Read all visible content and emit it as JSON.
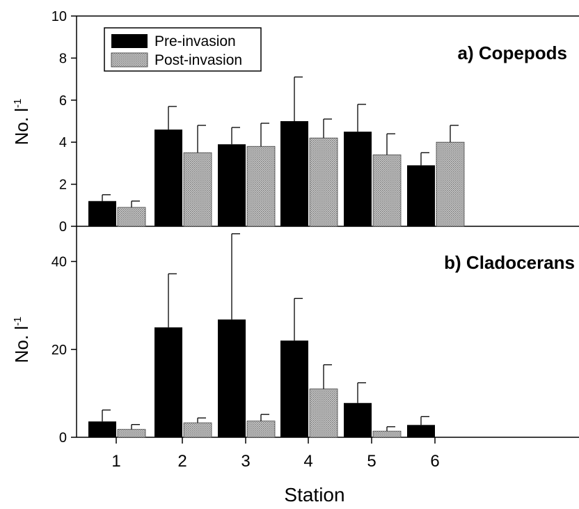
{
  "colors": {
    "pre": "#000000",
    "post": "#a6a6a6",
    "axis": "#000000"
  },
  "legend": {
    "pre": "Pre-invasion",
    "post": "Post-invasion"
  },
  "xaxis": {
    "label": "Station",
    "ticks": [
      "1",
      "2",
      "3",
      "4",
      "5",
      "6"
    ]
  },
  "chart_data": [
    {
      "type": "bar",
      "title": "a) Copepods",
      "ylabel": "No. l",
      "ylabel_sup": "-1",
      "ylim": [
        0,
        10
      ],
      "yticks": [
        0,
        2,
        4,
        6,
        8,
        10
      ],
      "categories": [
        "1",
        "2",
        "3",
        "4",
        "5",
        "6"
      ],
      "series": [
        {
          "name": "Pre-invasion",
          "values": [
            1.2,
            4.6,
            3.9,
            5.0,
            4.5,
            2.9
          ],
          "errors": [
            0.3,
            1.1,
            0.8,
            2.1,
            1.3,
            0.6
          ]
        },
        {
          "name": "Post-invasion",
          "values": [
            0.9,
            3.5,
            3.8,
            4.2,
            3.4,
            4.0
          ],
          "errors": [
            0.3,
            1.3,
            1.1,
            0.9,
            1.0,
            0.8
          ]
        }
      ],
      "legend_position": "top-left"
    },
    {
      "type": "bar",
      "title": "b) Cladocerans",
      "ylabel": "No. l",
      "ylabel_sup": "-1",
      "ylim": [
        0,
        48
      ],
      "yticks": [
        0,
        20,
        40
      ],
      "categories": [
        "1",
        "2",
        "3",
        "4",
        "5",
        "6"
      ],
      "series": [
        {
          "name": "Pre-invasion",
          "values": [
            3.6,
            25.0,
            26.8,
            22.0,
            7.8,
            2.8
          ],
          "errors": [
            2.6,
            12.2,
            19.5,
            9.6,
            4.6,
            1.9
          ]
        },
        {
          "name": "Post-invasion",
          "values": [
            1.8,
            3.3,
            3.7,
            11.0,
            1.4,
            0.0
          ],
          "errors": [
            1.1,
            1.1,
            1.5,
            5.5,
            1.0,
            0.0
          ]
        }
      ]
    }
  ]
}
